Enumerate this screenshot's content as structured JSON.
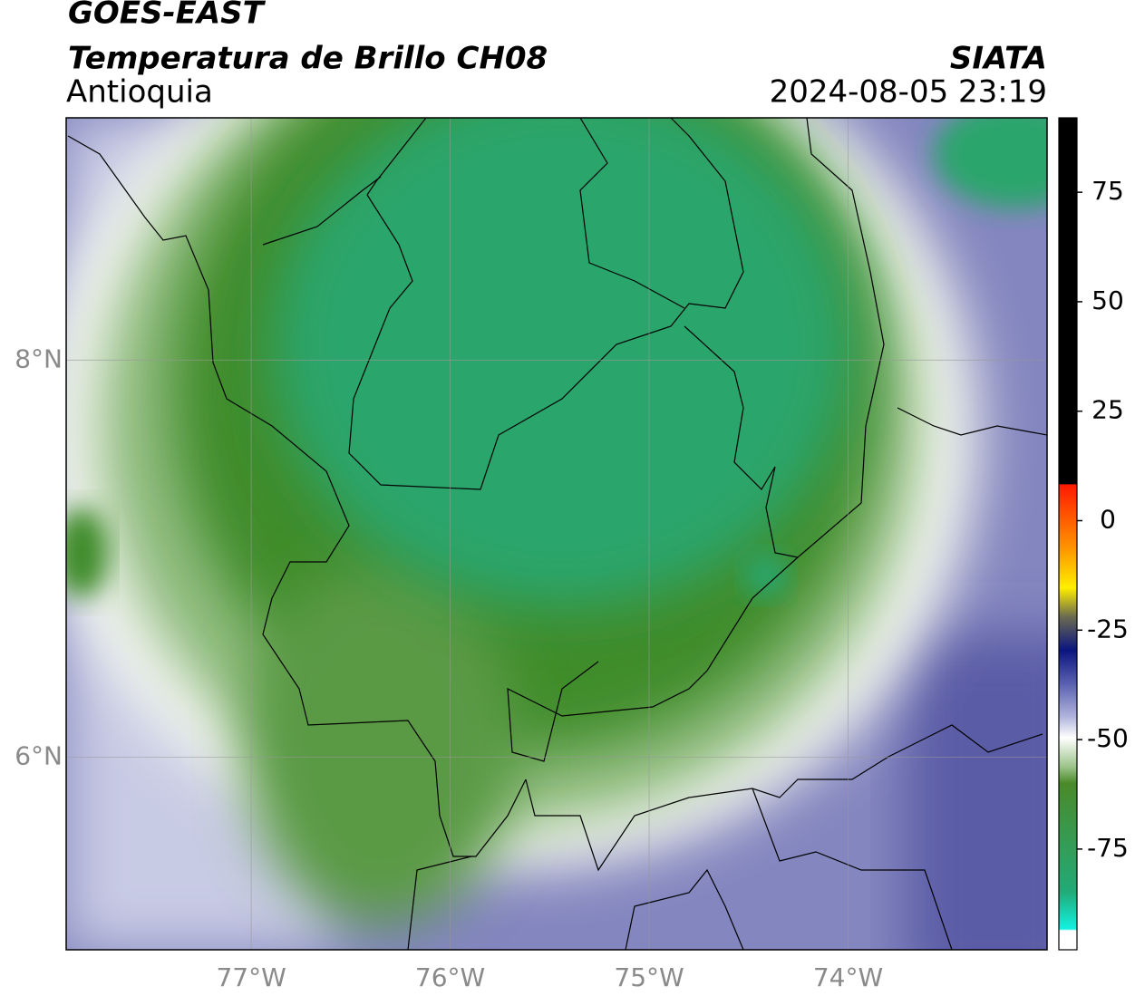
{
  "header": {
    "satellite": "GOES-EAST",
    "product": "Temperatura de Brillo CH08",
    "region": "Antioquia",
    "agency": "SIATA",
    "datetime": "2024-08-05 23:19"
  },
  "chart_data": {
    "type": "map",
    "xlim": [
      -77.93,
      -73.0
    ],
    "ylim": [
      5.03,
      9.22
    ],
    "xticks": [
      {
        "value": -77,
        "label": "77°W"
      },
      {
        "value": -76,
        "label": "76°W"
      },
      {
        "value": -75,
        "label": "75°W"
      },
      {
        "value": -74,
        "label": "74°W"
      }
    ],
    "yticks": [
      {
        "value": 6,
        "label": "6°N"
      },
      {
        "value": 8,
        "label": "8°N"
      }
    ],
    "grid": true,
    "colorbar": {
      "clim": [
        -98,
        92
      ],
      "ticks": [
        -75,
        -50,
        -25,
        0,
        25,
        50,
        75
      ]
    }
  }
}
